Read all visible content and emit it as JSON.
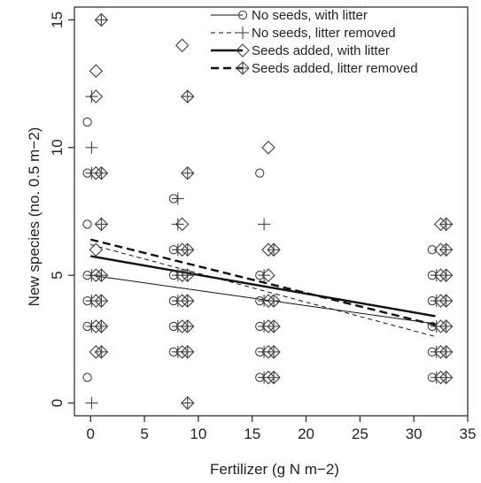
{
  "chart_data": {
    "type": "scatter",
    "xlabel": "Fertilizer (g N m−2)",
    "ylabel": "New species (no. 0.5 m−2)",
    "xlim": [
      -1.5,
      35
    ],
    "ylim": [
      -0.5,
      15.5
    ],
    "xticks": [
      0,
      5,
      10,
      15,
      20,
      25,
      30,
      35
    ],
    "yticks": [
      0,
      5,
      10,
      15
    ],
    "legend_position": "top-right",
    "series": [
      {
        "name": "No seeds, with litter",
        "marker": "circle",
        "line": "solid-thin",
        "offset": -0.3,
        "points": [
          [
            0,
            1
          ],
          [
            0,
            3
          ],
          [
            0,
            4
          ],
          [
            0,
            5
          ],
          [
            0,
            7
          ],
          [
            0,
            9
          ],
          [
            0,
            11
          ],
          [
            8,
            2
          ],
          [
            8,
            3
          ],
          [
            8,
            4
          ],
          [
            8,
            5
          ],
          [
            8,
            6
          ],
          [
            8,
            8
          ],
          [
            16,
            1
          ],
          [
            16,
            2
          ],
          [
            16,
            3
          ],
          [
            16,
            4
          ],
          [
            16,
            5
          ],
          [
            16,
            9
          ],
          [
            32,
            1
          ],
          [
            32,
            2
          ],
          [
            32,
            3
          ],
          [
            32,
            4
          ],
          [
            32,
            5
          ],
          [
            32,
            6
          ]
        ],
        "fit": [
          [
            0,
            5.0
          ],
          [
            32,
            3.1
          ]
        ]
      },
      {
        "name": "No seeds, litter removed",
        "marker": "plus",
        "line": "dashed-thin",
        "offset": 0.1,
        "points": [
          [
            0,
            0
          ],
          [
            0,
            3
          ],
          [
            0,
            4
          ],
          [
            0,
            5
          ],
          [
            0,
            9
          ],
          [
            0,
            10
          ],
          [
            0,
            12
          ],
          [
            8,
            2
          ],
          [
            8,
            3
          ],
          [
            8,
            4
          ],
          [
            8,
            5
          ],
          [
            8,
            6
          ],
          [
            8,
            7
          ],
          [
            8,
            8
          ],
          [
            16,
            1
          ],
          [
            16,
            2
          ],
          [
            16,
            3
          ],
          [
            16,
            4
          ],
          [
            16,
            5
          ],
          [
            16,
            7
          ],
          [
            32,
            1
          ],
          [
            32,
            2
          ],
          [
            32,
            3
          ],
          [
            32,
            4
          ],
          [
            32,
            5
          ]
        ],
        "fit": [
          [
            0,
            6.2
          ],
          [
            32,
            2.6
          ]
        ]
      },
      {
        "name": "Seeds added, with litter",
        "marker": "diamond",
        "line": "solid-thick",
        "offset": 0.5,
        "points": [
          [
            0,
            2
          ],
          [
            0,
            3
          ],
          [
            0,
            4
          ],
          [
            0,
            5
          ],
          [
            0,
            6
          ],
          [
            0,
            9
          ],
          [
            0,
            12
          ],
          [
            0,
            13
          ],
          [
            8,
            2
          ],
          [
            8,
            3
          ],
          [
            8,
            4
          ],
          [
            8,
            5
          ],
          [
            8,
            6
          ],
          [
            8,
            7
          ],
          [
            8,
            14
          ],
          [
            16,
            1
          ],
          [
            16,
            2
          ],
          [
            16,
            3
          ],
          [
            16,
            4
          ],
          [
            16,
            5
          ],
          [
            16,
            6
          ],
          [
            16,
            10
          ],
          [
            32,
            1
          ],
          [
            32,
            2
          ],
          [
            32,
            3
          ],
          [
            32,
            4
          ],
          [
            32,
            5
          ],
          [
            32,
            6
          ],
          [
            32,
            7
          ]
        ],
        "fit": [
          [
            0,
            5.75
          ],
          [
            32,
            3.4
          ]
        ]
      },
      {
        "name": "Seeds added, litter removed",
        "marker": "diamond-plus",
        "line": "dashed-thick",
        "offset": 1.0,
        "points": [
          [
            0,
            2
          ],
          [
            0,
            3
          ],
          [
            0,
            4
          ],
          [
            0,
            5
          ],
          [
            0,
            7
          ],
          [
            0,
            9
          ],
          [
            0,
            15
          ],
          [
            8,
            0
          ],
          [
            8,
            2
          ],
          [
            8,
            3
          ],
          [
            8,
            4
          ],
          [
            8,
            5
          ],
          [
            8,
            6
          ],
          [
            8,
            9
          ],
          [
            8,
            12
          ],
          [
            16,
            1
          ],
          [
            16,
            2
          ],
          [
            16,
            3
          ],
          [
            16,
            4
          ],
          [
            16,
            6
          ],
          [
            32,
            1
          ],
          [
            32,
            2
          ],
          [
            32,
            3
          ],
          [
            32,
            4
          ],
          [
            32,
            5
          ],
          [
            32,
            6
          ],
          [
            32,
            7
          ]
        ],
        "fit": [
          [
            0,
            6.4
          ],
          [
            32,
            3.05
          ]
        ]
      }
    ]
  }
}
